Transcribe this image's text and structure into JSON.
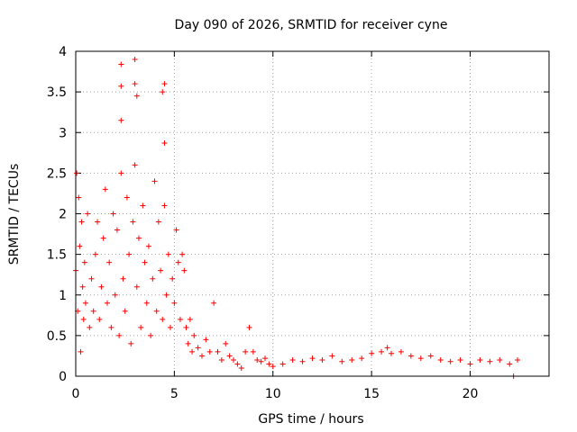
{
  "chart_data": {
    "type": "scatter",
    "title": "Day 090 of 2026, SRMTID for receiver cyne",
    "xlabel": "GPS time / hours",
    "ylabel": "SRMTID / TECUs",
    "xlim": [
      0,
      24
    ],
    "ylim": [
      0,
      4
    ],
    "xticks": [
      0,
      5,
      10,
      15,
      20
    ],
    "xtick_labels": [
      "0",
      "5",
      "10",
      "15",
      "20"
    ],
    "yticks": [
      0,
      0.5,
      1,
      1.5,
      2,
      2.5,
      3,
      3.5,
      4
    ],
    "ytick_labels": [
      "0",
      "0.5",
      "1",
      "1.5",
      "2",
      "2.5",
      "3",
      "3.5",
      "4"
    ],
    "grid": true,
    "marker": "+",
    "series": [
      {
        "name": "SRMTID",
        "color": "#ff0000",
        "x": [
          0.0,
          0.05,
          0.1,
          0.15,
          0.2,
          0.25,
          0.3,
          0.35,
          0.4,
          0.45,
          0.5,
          0.6,
          0.7,
          0.8,
          0.9,
          1.0,
          1.1,
          1.2,
          1.3,
          1.4,
          1.5,
          1.6,
          1.7,
          1.8,
          1.9,
          2.0,
          2.1,
          2.2,
          2.3,
          2.4,
          2.5,
          2.6,
          2.7,
          2.8,
          2.9,
          3.0,
          3.1,
          3.2,
          3.3,
          3.4,
          3.5,
          3.6,
          3.7,
          3.8,
          3.9,
          4.0,
          4.1,
          4.2,
          4.3,
          4.4,
          4.5,
          4.6,
          4.7,
          4.8,
          4.9,
          5.0,
          5.1,
          5.2,
          5.3,
          5.4,
          5.5,
          5.6,
          5.7,
          5.8,
          5.9,
          6.0,
          6.2,
          6.4,
          6.6,
          6.8,
          7.0,
          7.2,
          7.4,
          7.6,
          7.8,
          8.0,
          8.2,
          8.4,
          8.6,
          8.8,
          9.0,
          9.2,
          9.4,
          9.6,
          9.8,
          10.0,
          10.5,
          11.0,
          11.5,
          12.0,
          12.5,
          13.0,
          13.5,
          14.0,
          14.5,
          15.0,
          15.5,
          15.8,
          16.0,
          16.5,
          17.0,
          17.5,
          18.0,
          18.5,
          19.0,
          19.5,
          20.0,
          20.5,
          21.0,
          21.5,
          22.0,
          22.2,
          22.4,
          2.3,
          3.0,
          2.3,
          3.0,
          3.1,
          4.5,
          4.4,
          2.3,
          4.5
        ],
        "y": [
          1.3,
          2.5,
          0.8,
          2.2,
          1.6,
          0.3,
          1.9,
          1.1,
          0.7,
          1.4,
          0.9,
          2.0,
          0.6,
          1.2,
          0.8,
          1.5,
          1.9,
          0.7,
          1.1,
          1.7,
          2.3,
          0.9,
          1.4,
          0.6,
          2.0,
          1.0,
          1.8,
          0.5,
          2.5,
          1.2,
          0.8,
          2.2,
          1.5,
          0.4,
          1.9,
          2.6,
          1.1,
          1.7,
          0.6,
          2.1,
          1.4,
          0.9,
          1.6,
          0.5,
          1.2,
          2.4,
          0.8,
          1.9,
          1.3,
          0.7,
          2.1,
          1.0,
          1.5,
          0.6,
          1.2,
          0.9,
          1.8,
          1.4,
          0.7,
          1.5,
          1.3,
          0.6,
          0.4,
          0.7,
          0.3,
          0.5,
          0.35,
          0.25,
          0.45,
          0.3,
          0.9,
          0.3,
          0.2,
          0.4,
          0.25,
          0.2,
          0.15,
          0.1,
          0.3,
          0.6,
          0.3,
          0.2,
          0.18,
          0.22,
          0.15,
          0.12,
          0.15,
          0.2,
          0.18,
          0.22,
          0.2,
          0.25,
          0.18,
          0.2,
          0.22,
          0.28,
          0.3,
          0.35,
          0.28,
          0.3,
          0.25,
          0.22,
          0.25,
          0.2,
          0.18,
          0.2,
          0.15,
          0.2,
          0.18,
          0.2,
          0.15,
          0.0,
          0.2,
          3.84,
          3.9,
          3.57,
          3.6,
          3.45,
          3.6,
          3.5,
          3.15,
          2.87
        ]
      }
    ]
  }
}
